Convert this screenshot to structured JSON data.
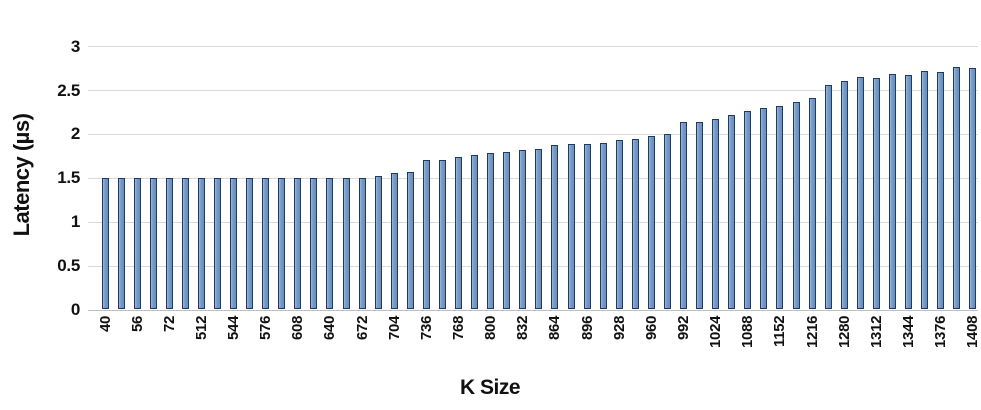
{
  "chart_data": {
    "type": "bar",
    "title": "",
    "xlabel": "K Size",
    "ylabel": "Latency (µs)",
    "ylim": [
      0,
      3
    ],
    "yticks": [
      "0",
      "0.5",
      "1",
      "1.5",
      "2",
      "2.5",
      "3"
    ],
    "ytick_values": [
      0,
      0.5,
      1,
      1.5,
      2,
      2.5,
      3
    ],
    "grid": "horizontal",
    "legend": "none",
    "x_label_pattern": "every other bar labeled",
    "colors": {
      "bar_fill": "#7699c8",
      "bar_border": "#1f3a5f",
      "gridline": "#d9d9d9",
      "axis_line": "#c0c0c0",
      "text": "#111111"
    },
    "bars": [
      {
        "label": "40",
        "value": 1.5
      },
      {
        "label": "",
        "value": 1.5
      },
      {
        "label": "56",
        "value": 1.5
      },
      {
        "label": "",
        "value": 1.5
      },
      {
        "label": "72",
        "value": 1.5
      },
      {
        "label": "",
        "value": 1.5
      },
      {
        "label": "512",
        "value": 1.5
      },
      {
        "label": "",
        "value": 1.5
      },
      {
        "label": "544",
        "value": 1.5
      },
      {
        "label": "",
        "value": 1.5
      },
      {
        "label": "576",
        "value": 1.5
      },
      {
        "label": "",
        "value": 1.5
      },
      {
        "label": "608",
        "value": 1.5
      },
      {
        "label": "",
        "value": 1.5
      },
      {
        "label": "640",
        "value": 1.5
      },
      {
        "label": "",
        "value": 1.5
      },
      {
        "label": "672",
        "value": 1.5
      },
      {
        "label": "",
        "value": 1.52
      },
      {
        "label": "704",
        "value": 1.56
      },
      {
        "label": "",
        "value": 1.57
      },
      {
        "label": "736",
        "value": 1.7
      },
      {
        "label": "",
        "value": 1.7
      },
      {
        "label": "768",
        "value": 1.74
      },
      {
        "label": "",
        "value": 1.76
      },
      {
        "label": "800",
        "value": 1.78
      },
      {
        "label": "",
        "value": 1.79
      },
      {
        "label": "832",
        "value": 1.82
      },
      {
        "label": "",
        "value": 1.83
      },
      {
        "label": "864",
        "value": 1.87
      },
      {
        "label": "",
        "value": 1.88
      },
      {
        "label": "896",
        "value": 1.89
      },
      {
        "label": "",
        "value": 1.9
      },
      {
        "label": "928",
        "value": 1.93
      },
      {
        "label": "",
        "value": 1.94
      },
      {
        "label": "960",
        "value": 1.98
      },
      {
        "label": "",
        "value": 2.0
      },
      {
        "label": "992",
        "value": 2.13
      },
      {
        "label": "",
        "value": 2.14
      },
      {
        "label": "1024",
        "value": 2.17
      },
      {
        "label": "",
        "value": 2.21
      },
      {
        "label": "1088",
        "value": 2.26
      },
      {
        "label": "",
        "value": 2.29
      },
      {
        "label": "1152",
        "value": 2.32
      },
      {
        "label": "",
        "value": 2.36
      },
      {
        "label": "1216",
        "value": 2.41
      },
      {
        "label": "",
        "value": 2.56
      },
      {
        "label": "1280",
        "value": 2.6
      },
      {
        "label": "",
        "value": 2.65
      },
      {
        "label": "1312",
        "value": 2.64
      },
      {
        "label": "",
        "value": 2.68
      },
      {
        "label": "1344",
        "value": 2.67
      },
      {
        "label": "",
        "value": 2.72
      },
      {
        "label": "1376",
        "value": 2.71
      },
      {
        "label": "",
        "value": 2.76
      },
      {
        "label": "1408",
        "value": 2.75
      }
    ]
  }
}
